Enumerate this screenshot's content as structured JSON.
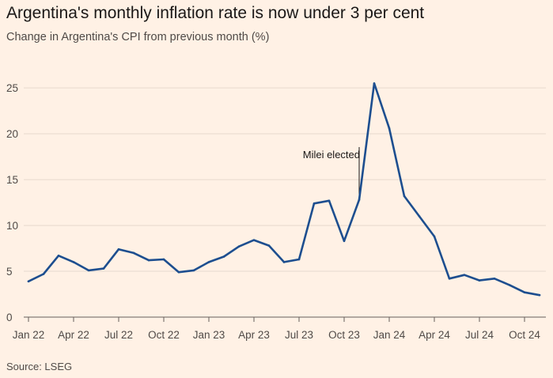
{
  "header": {
    "title": "Argentina's monthly inflation rate is now under 3 per cent",
    "subtitle": "Change in Argentina's CPI from previous month (%)"
  },
  "footer": {
    "source": "Source: LSEG"
  },
  "colors": {
    "background": "#fff1e5",
    "line": "#1d4e8f",
    "grid": "#e6d9ce",
    "baseline": "#66605c"
  },
  "chart_data": {
    "type": "line",
    "title": "Argentina's monthly inflation rate is now under 3 per cent",
    "subtitle": "Change in Argentina's CPI from previous month (%)",
    "xlabel": "",
    "ylabel": "",
    "ylim": [
      0,
      27
    ],
    "yticks": [
      0,
      5,
      10,
      15,
      20,
      25
    ],
    "grid": true,
    "x": [
      "2022-01",
      "2022-02",
      "2022-03",
      "2022-04",
      "2022-05",
      "2022-06",
      "2022-07",
      "2022-08",
      "2022-09",
      "2022-10",
      "2022-11",
      "2022-12",
      "2023-01",
      "2023-02",
      "2023-03",
      "2023-04",
      "2023-05",
      "2023-06",
      "2023-07",
      "2023-08",
      "2023-09",
      "2023-10",
      "2023-11",
      "2023-12",
      "2024-01",
      "2024-02",
      "2024-03",
      "2024-04",
      "2024-05",
      "2024-06",
      "2024-07",
      "2024-08",
      "2024-09",
      "2024-10",
      "2024-11"
    ],
    "xtick_labels": [
      {
        "x": "2022-01",
        "label": "Jan 22"
      },
      {
        "x": "2022-04",
        "label": "Apr 22"
      },
      {
        "x": "2022-07",
        "label": "Jul 22"
      },
      {
        "x": "2022-10",
        "label": "Oct 22"
      },
      {
        "x": "2023-01",
        "label": "Jan 23"
      },
      {
        "x": "2023-04",
        "label": "Apr 23"
      },
      {
        "x": "2023-07",
        "label": "Jul 23"
      },
      {
        "x": "2023-10",
        "label": "Oct 23"
      },
      {
        "x": "2024-01",
        "label": "Jan 24"
      },
      {
        "x": "2024-04",
        "label": "Apr 24"
      },
      {
        "x": "2024-07",
        "label": "Jul 24"
      },
      {
        "x": "2024-10",
        "label": "Oct 24"
      }
    ],
    "series": [
      {
        "values": [
          3.9,
          4.7,
          6.7,
          6.0,
          5.1,
          5.3,
          7.4,
          7.0,
          6.2,
          6.3,
          4.9,
          5.1,
          6.0,
          6.6,
          7.7,
          8.4,
          7.8,
          6.0,
          6.3,
          12.4,
          12.7,
          8.3,
          12.8,
          25.5,
          20.6,
          13.2,
          11.0,
          8.8,
          4.2,
          4.6,
          4.0,
          4.2,
          3.5,
          2.7,
          2.4
        ]
      }
    ],
    "annotations": [
      {
        "text": "Milei elected",
        "x": "2023-11"
      }
    ]
  }
}
